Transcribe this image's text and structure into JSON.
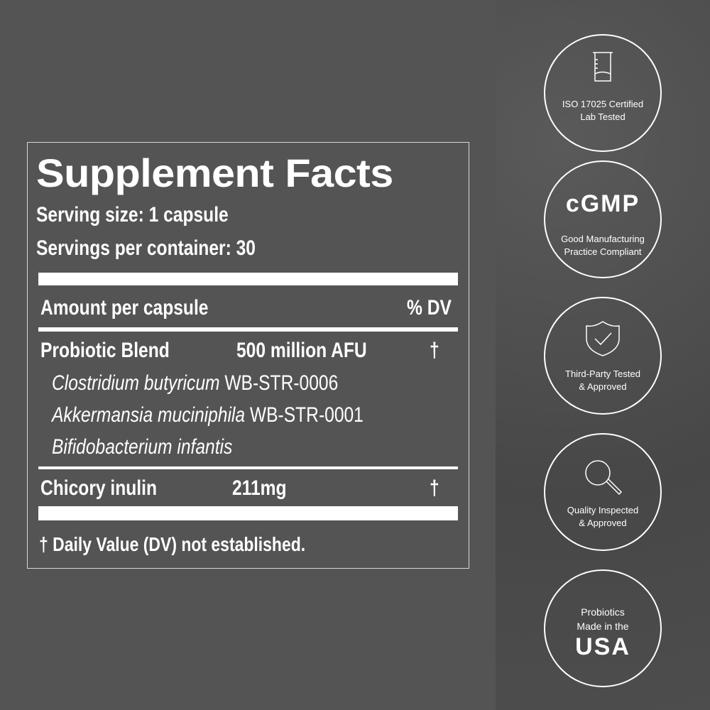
{
  "label": {
    "title": "Supplement Facts",
    "serving_size": "Serving size: 1 capsule",
    "servings_per_container": "Servings per container: 30",
    "amount_header": "Amount per capsule",
    "dv_header": "% DV",
    "blend": {
      "name": "Probiotic Blend",
      "amount": "500 million AFU",
      "dv": "†"
    },
    "strains": [
      {
        "species": "Clostridium butyricum",
        "strain": "WB-STR-0006"
      },
      {
        "species": "Akkermansia muciniphila",
        "strain": "WB-STR-0001"
      },
      {
        "species": "Bifidobacterium infantis",
        "strain": ""
      }
    ],
    "inulin": {
      "name": "Chicory inulin",
      "amount": "211mg",
      "dv": "†"
    },
    "footnote": "† Daily Value (DV) not established."
  },
  "badges": [
    {
      "icon": "beaker-icon",
      "lines": [
        "ISO 17025 Certified",
        "Lab Tested"
      ]
    },
    {
      "icon": "cgmp-logo",
      "logo": "cGMP",
      "lines": [
        "Good Manufacturing",
        "Practice Compliant"
      ]
    },
    {
      "icon": "shield-check-icon",
      "lines": [
        "Third-Party Tested",
        "& Approved"
      ]
    },
    {
      "icon": "magnifier-icon",
      "lines": [
        "Quality Inspected",
        "& Approved"
      ]
    },
    {
      "icon": "usa-logo",
      "lines": [
        "Probiotics",
        "Made in the"
      ],
      "logo": "USA"
    }
  ]
}
